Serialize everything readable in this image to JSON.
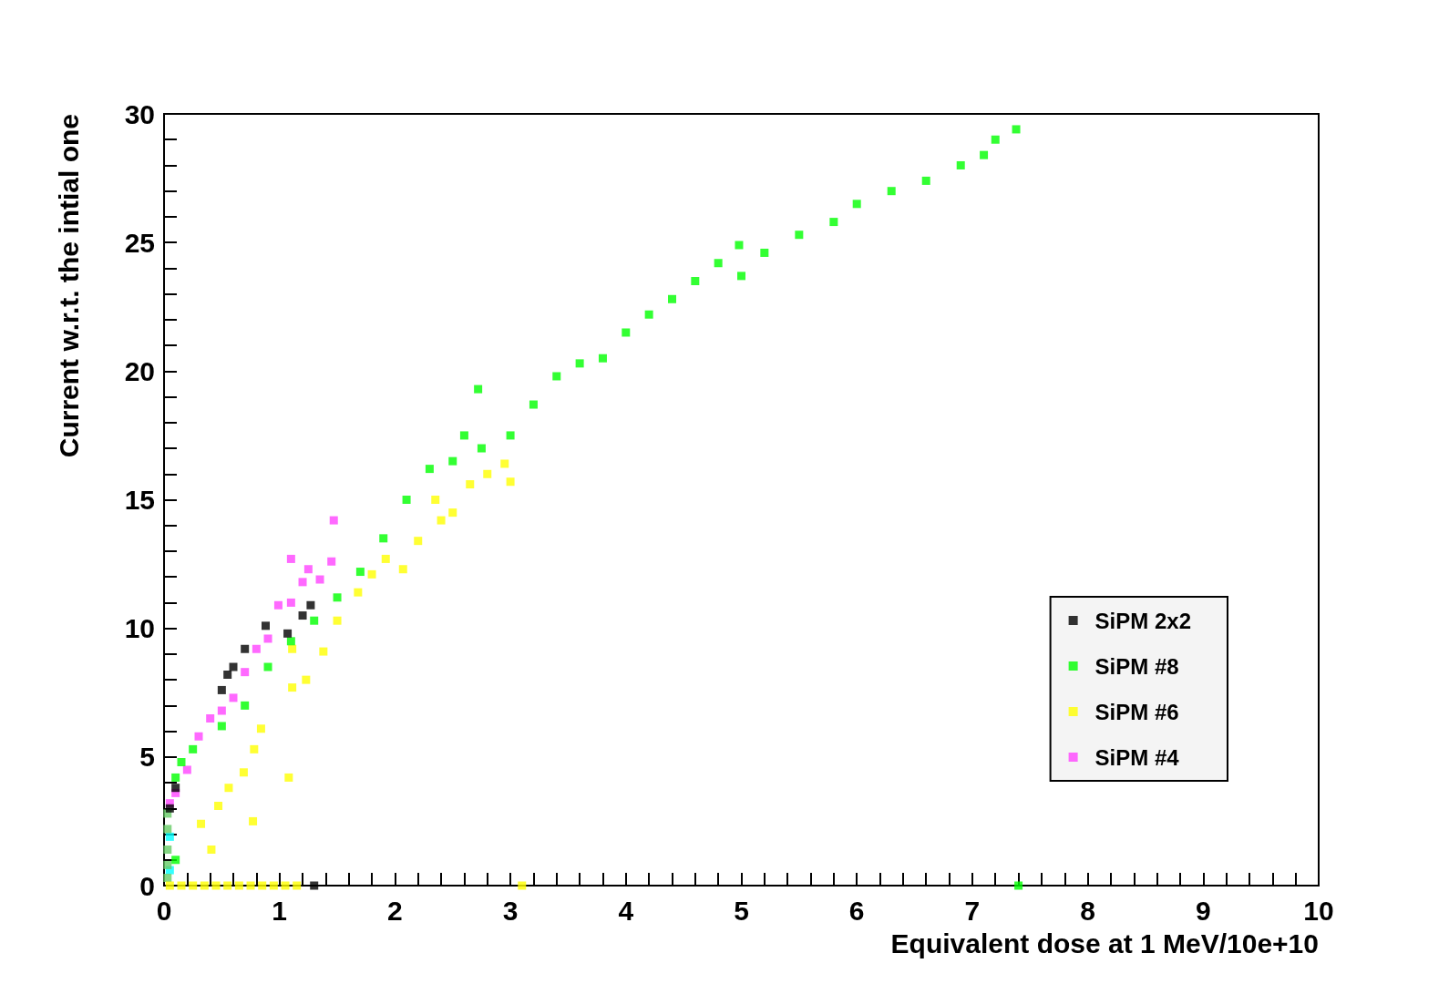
{
  "chart_data": {
    "type": "scatter",
    "xlabel": "Equivalent dose at 1 MeV/10e+10",
    "ylabel": "Current w.r.t. the intial one",
    "xlim": [
      0,
      10
    ],
    "ylim": [
      0,
      30
    ],
    "xticks": [
      0,
      {
        "value": 0.2,
        "label": null
      },
      {
        "value": 0.4,
        "label": null
      },
      {
        "value": 0.6,
        "label": null
      },
      {
        "value": 0.8,
        "label": null
      },
      1,
      {
        "value": 1.2,
        "label": null
      },
      {
        "value": 1.4,
        "label": null
      },
      {
        "value": 1.6,
        "label": null
      },
      {
        "value": 1.8,
        "label": null
      },
      2,
      {
        "value": 2.2,
        "label": null
      },
      {
        "value": 2.4,
        "label": null
      },
      {
        "value": 2.6,
        "label": null
      },
      {
        "value": 2.8,
        "label": null
      },
      3,
      {
        "value": 3.2,
        "label": null
      },
      {
        "value": 3.4,
        "label": null
      },
      {
        "value": 3.6,
        "label": null
      },
      {
        "value": 3.8,
        "label": null
      },
      4,
      {
        "value": 4.2,
        "label": null
      },
      {
        "value": 4.4,
        "label": null
      },
      {
        "value": 4.6,
        "label": null
      },
      {
        "value": 4.8,
        "label": null
      },
      5,
      {
        "value": 5.2,
        "label": null
      },
      {
        "value": 5.4,
        "label": null
      },
      {
        "value": 5.6,
        "label": null
      },
      {
        "value": 5.8,
        "label": null
      },
      6,
      {
        "value": 6.2,
        "label": null
      },
      {
        "value": 6.4,
        "label": null
      },
      {
        "value": 6.6,
        "label": null
      },
      {
        "value": 6.8,
        "label": null
      },
      7,
      {
        "value": 7.2,
        "label": null
      },
      {
        "value": 7.4,
        "label": null
      },
      {
        "value": 7.6,
        "label": null
      },
      {
        "value": 7.8,
        "label": null
      },
      8,
      {
        "value": 8.2,
        "label": null
      },
      {
        "value": 8.4,
        "label": null
      },
      {
        "value": 8.6,
        "label": null
      },
      {
        "value": 8.8,
        "label": null
      },
      9,
      {
        "value": 9.2,
        "label": null
      },
      {
        "value": 9.4,
        "label": null
      },
      {
        "value": 9.6,
        "label": null
      },
      {
        "value": 9.8,
        "label": null
      },
      10
    ],
    "yticks": [
      0,
      {
        "value": 1,
        "label": null
      },
      {
        "value": 2,
        "label": null
      },
      {
        "value": 3,
        "label": null
      },
      {
        "value": 4,
        "label": null
      },
      5,
      {
        "value": 6,
        "label": null
      },
      {
        "value": 7,
        "label": null
      },
      {
        "value": 8,
        "label": null
      },
      {
        "value": 9,
        "label": null
      },
      10,
      {
        "value": 11,
        "label": null
      },
      {
        "value": 12,
        "label": null
      },
      {
        "value": 13,
        "label": null
      },
      {
        "value": 14,
        "label": null
      },
      15,
      {
        "value": 16,
        "label": null
      },
      {
        "value": 17,
        "label": null
      },
      {
        "value": 18,
        "label": null
      },
      {
        "value": 19,
        "label": null
      },
      20,
      {
        "value": 21,
        "label": null
      },
      {
        "value": 22,
        "label": null
      },
      {
        "value": 23,
        "label": null
      },
      {
        "value": 24,
        "label": null
      },
      25,
      {
        "value": 26,
        "label": null
      },
      {
        "value": 27,
        "label": null
      },
      {
        "value": 28,
        "label": null
      },
      {
        "value": 29,
        "label": null
      },
      30
    ],
    "marker": "square",
    "legend": "bottom right",
    "series": [
      {
        "name": "SiPM 2x2",
        "color": "#000000",
        "x": [
          0.05,
          0.1,
          0.5,
          0.55,
          0.6,
          0.7,
          0.88,
          1.07,
          1.2,
          1.27,
          1.3
        ],
        "values": [
          3.0,
          3.8,
          7.6,
          8.2,
          8.5,
          9.2,
          10.1,
          9.8,
          10.5,
          10.9,
          0
        ]
      },
      {
        "name": "SiPM #8",
        "color": "#00ff00",
        "x": [
          0.1,
          0.1,
          0.15,
          0.25,
          0.5,
          0.7,
          0.9,
          1.1,
          1.3,
          1.5,
          1.7,
          1.9,
          2.1,
          2.3,
          2.5,
          2.6,
          2.72,
          2.75,
          3.0,
          3.2,
          3.4,
          3.6,
          3.8,
          4.0,
          4.2,
          4.4,
          4.6,
          4.8,
          4.98,
          5.0,
          5.2,
          5.5,
          5.8,
          6.0,
          6.3,
          6.6,
          6.9,
          7.1,
          7.2,
          7.38,
          7.4
        ],
        "values": [
          1.0,
          4.2,
          4.8,
          5.3,
          6.2,
          7.0,
          8.5,
          9.5,
          10.3,
          11.2,
          12.2,
          13.5,
          15.0,
          16.2,
          16.5,
          17.5,
          19.3,
          17.0,
          17.5,
          18.7,
          19.8,
          20.3,
          20.5,
          21.5,
          22.2,
          22.8,
          23.5,
          24.2,
          24.9,
          23.7,
          24.6,
          25.3,
          25.8,
          26.5,
          27.0,
          27.4,
          28.0,
          28.4,
          29.0,
          29.4,
          0
        ]
      },
      {
        "name": "SiPM #6",
        "color": "#ffff00",
        "x": [
          0.05,
          0.15,
          0.25,
          0.35,
          0.45,
          0.55,
          0.65,
          0.75,
          0.85,
          0.95,
          1.05,
          1.15,
          0.32,
          0.41,
          0.47,
          0.56,
          0.69,
          0.77,
          0.78,
          0.84,
          1.08,
          1.11,
          1.11,
          1.23,
          1.38,
          1.5,
          1.68,
          1.8,
          1.92,
          2.07,
          2.2,
          2.35,
          2.4,
          2.5,
          2.65,
          2.8,
          2.95,
          3.0,
          3.1
        ],
        "values": [
          0,
          0,
          0,
          0,
          0,
          0,
          0,
          0,
          0,
          0,
          0,
          0,
          2.4,
          1.4,
          3.1,
          3.8,
          4.4,
          2.5,
          5.3,
          6.1,
          4.2,
          7.7,
          9.2,
          8.0,
          9.1,
          10.3,
          11.4,
          12.1,
          12.7,
          12.3,
          13.4,
          15.0,
          14.2,
          14.5,
          15.6,
          16.0,
          16.4,
          15.7,
          0
        ]
      },
      {
        "name": "SiPM #4",
        "color": "#ff44ff",
        "x": [
          0.05,
          0.1,
          0.2,
          0.3,
          0.4,
          0.5,
          0.6,
          0.7,
          0.8,
          0.9,
          0.99,
          1.1,
          1.1,
          1.2,
          1.25,
          1.35,
          1.45,
          1.47
        ],
        "values": [
          3.2,
          3.6,
          4.5,
          5.8,
          6.5,
          6.8,
          7.3,
          8.3,
          9.2,
          9.6,
          10.9,
          11.0,
          12.7,
          11.8,
          12.3,
          11.9,
          12.6,
          14.2
        ]
      },
      {
        "color": "#66cc66",
        "x": [
          0.03,
          0.03,
          0.03,
          0.03,
          0.03
        ],
        "values": [
          0.3,
          0.8,
          1.4,
          2.2,
          2.8
        ]
      },
      {
        "color": "#00ffff",
        "x": [
          0.05,
          0.05
        ],
        "values": [
          0.6,
          1.9
        ]
      }
    ]
  }
}
